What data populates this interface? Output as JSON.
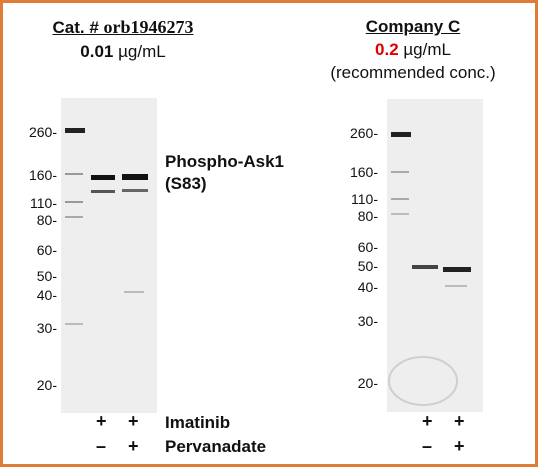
{
  "left_header": {
    "cat_prefix": "Cat. # ",
    "cat_number": "orb1946273",
    "conc_value": "0.01",
    "conc_unit": " µg/mL"
  },
  "right_header": {
    "company": "Company C",
    "conc_value": "0.2",
    "conc_unit": " µg/mL",
    "note": "(recommended conc.)"
  },
  "left_markers": [
    "260-",
    "160-",
    "110-",
    "80-",
    "60-",
    "50-",
    "40-",
    "30-",
    "20-"
  ],
  "right_markers": [
    "260-",
    "160-",
    "110-",
    "80-",
    "60-",
    "50-",
    "40-",
    "30-",
    "20-"
  ],
  "target_label": {
    "line1": "Phospho-Ask1",
    "line2": "(S83)"
  },
  "treatments": {
    "imatinib": {
      "label": "Imatinib",
      "left": [
        "+",
        "+"
      ],
      "right": [
        "+",
        "+"
      ]
    },
    "pervanadate": {
      "label": "Pervanadate",
      "left": [
        "–",
        "+"
      ],
      "right": [
        "–",
        "+"
      ]
    }
  },
  "colors": {
    "frame": "#e07b39",
    "highlight": "#e00000"
  }
}
